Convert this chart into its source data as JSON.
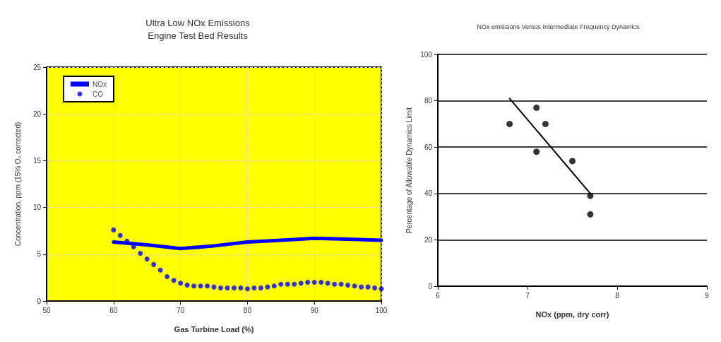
{
  "chart_data": [
    {
      "type": "line",
      "title": "Ultra Low NOx Emissions\nEngine Test Bed Results",
      "xlabel": "Gas Turbine Load (%)",
      "ylabel": "Concentration, ppm (15% O₂ corrected)",
      "xlim": [
        50,
        100
      ],
      "xticks": [
        50,
        60,
        70,
        80,
        90,
        100
      ],
      "ylim": [
        0,
        25
      ],
      "yticks": [
        0,
        5,
        10,
        15,
        20,
        25
      ],
      "grid": true,
      "legend": "top left",
      "series": [
        {
          "name": "NOx",
          "color": "#0000ff",
          "marker": "none",
          "line_style": "solid",
          "x": [
            60,
            65,
            70,
            75,
            80,
            85,
            90,
            95,
            100
          ],
          "values": [
            6.3,
            6.0,
            5.6,
            5.9,
            6.3,
            6.5,
            6.7,
            6.6,
            6.5
          ]
        },
        {
          "name": "CO",
          "color": "#0000ff",
          "type": "scatter",
          "marker": "circle",
          "x": [
            60,
            61,
            62,
            63,
            64,
            65,
            66,
            67,
            68,
            69,
            70,
            71,
            72,
            73,
            74,
            75,
            76,
            77,
            78,
            79,
            80,
            81,
            82,
            83,
            84,
            85,
            86,
            87,
            88,
            89,
            90,
            91,
            92,
            93,
            94,
            95,
            96,
            97,
            98,
            99,
            100
          ],
          "values": [
            7.6,
            7.0,
            6.4,
            5.8,
            5.1,
            4.5,
            3.9,
            3.3,
            2.6,
            2.2,
            1.9,
            1.7,
            1.6,
            1.6,
            1.6,
            1.5,
            1.4,
            1.4,
            1.4,
            1.4,
            1.3,
            1.4,
            1.4,
            1.5,
            1.6,
            1.8,
            1.8,
            1.8,
            1.9,
            2.0,
            2.0,
            2.0,
            1.9,
            1.8,
            1.8,
            1.7,
            1.6,
            1.5,
            1.5,
            1.4,
            1.3
          ]
        }
      ]
    },
    {
      "type": "scatter",
      "title": "NOx emissions Versus Intermediate Frequency Dynamics",
      "xlabel": "NOx (ppm, dry corr)",
      "ylabel": "Percentage of Allowable Dynamics Limit",
      "xlim": [
        6,
        9
      ],
      "xticks": [
        6,
        7,
        8,
        9
      ],
      "ylim": [
        0,
        100
      ],
      "yticks": [
        0,
        20,
        40,
        60,
        80,
        100
      ],
      "grid": "y",
      "legend": false,
      "series": [
        {
          "color": "#000000",
          "marker": "circle",
          "x": [
            6.8,
            7.1,
            7.1,
            7.2,
            7.5,
            7.7,
            7.7
          ],
          "values": [
            70,
            77,
            58,
            70,
            54,
            39,
            31
          ]
        },
        {
          "color": "#000000",
          "type": "line",
          "marker": "none",
          "line_style": "solid",
          "x": [
            6.8,
            7.7
          ],
          "values": [
            81,
            40
          ]
        }
      ]
    }
  ]
}
